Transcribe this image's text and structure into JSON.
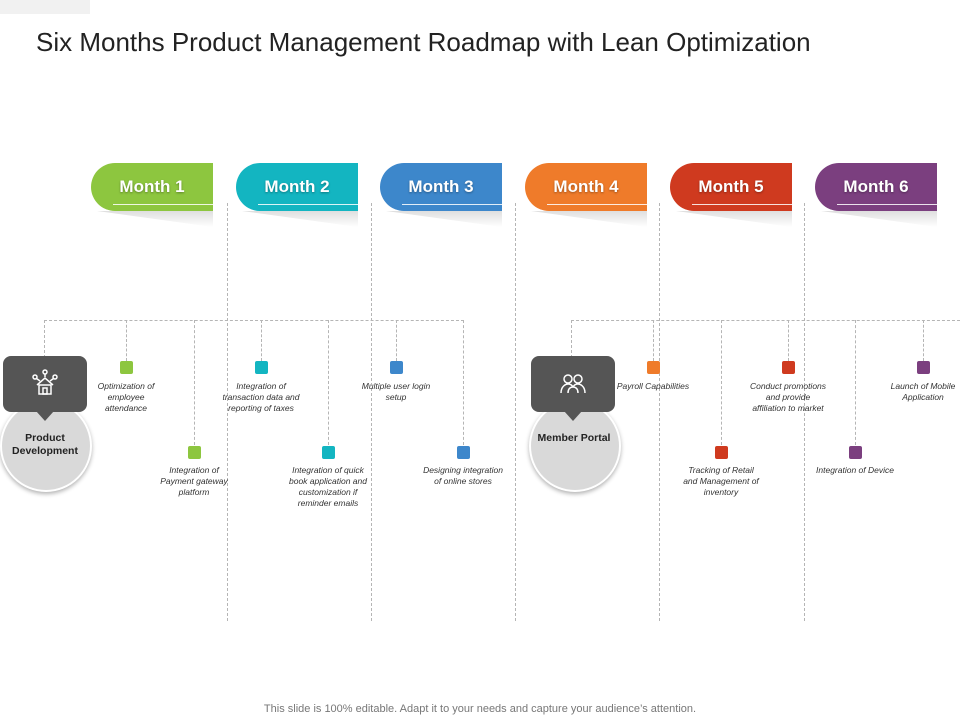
{
  "title": "Six Months Product Management Roadmap with Lean Optimization",
  "footer": "This slide is 100% editable. Adapt it to your needs and capture your audience’s attention.",
  "months": [
    {
      "label": "Month 1",
      "color": "#8dc63f"
    },
    {
      "label": "Month 2",
      "color": "#13b5c1"
    },
    {
      "label": "Month 3",
      "color": "#3d87cb"
    },
    {
      "label": "Month 4",
      "color": "#ef7b2a"
    },
    {
      "label": "Month 5",
      "color": "#cf3a1f"
    },
    {
      "label": "Month 6",
      "color": "#7b3f7f"
    }
  ],
  "groups": [
    {
      "name": "Product Development",
      "icon": "house-network-icon"
    },
    {
      "name": "Member Portal",
      "icon": "user-group-icon"
    }
  ],
  "tasks": [
    {
      "text": "Optimization of employee attendance",
      "color": "#8dc63f"
    },
    {
      "text": "Integration of Payment gateway platform",
      "color": "#8dc63f"
    },
    {
      "text": "Integration of transaction data and reporting of taxes",
      "color": "#13b5c1"
    },
    {
      "text": "Integration of quick book application and customization if reminder emails",
      "color": "#13b5c1"
    },
    {
      "text": "Multiple user login setup",
      "color": "#3d87cb"
    },
    {
      "text": "Designing integration of online stores",
      "color": "#3d87cb"
    },
    {
      "text": "Payroll Capabilities",
      "color": "#ef7b2a"
    },
    {
      "text": "Tracking of Retail and Management of inventory",
      "color": "#cf3a1f"
    },
    {
      "text": "Conduct promotions and provide affiliation to market",
      "color": "#cf3a1f"
    },
    {
      "text": "Integration of Device",
      "color": "#7b3f7f"
    },
    {
      "text": "Launch of Mobile Application",
      "color": "#7b3f7f"
    }
  ]
}
